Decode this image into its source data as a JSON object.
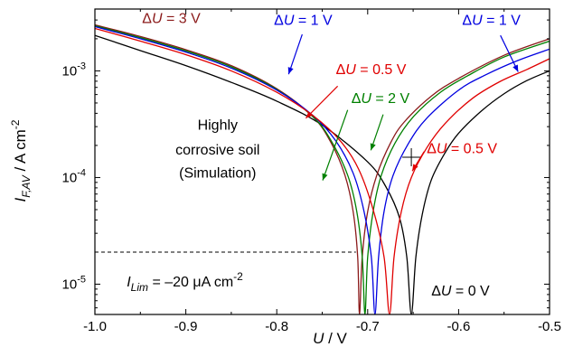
{
  "chart_data": {
    "type": "line",
    "title": "",
    "xlabel": {
      "pre": "",
      "main": "U",
      "sub": "",
      "post": " / V"
    },
    "ylabel": {
      "pre": "",
      "main": "I",
      "sub": "F,AV",
      "post": " / A cm",
      "sup": "-2"
    },
    "xlim": [
      -1.0,
      -0.5
    ],
    "ylim": [
      5.2e-06,
      0.0038
    ],
    "yscale": "log",
    "grid": false,
    "legend": "none",
    "x_ticks": [
      {
        "v": -1.0,
        "label": "-1.0"
      },
      {
        "v": -0.9,
        "label": "-0.9"
      },
      {
        "v": -0.8,
        "label": "-0.8"
      },
      {
        "v": -0.7,
        "label": "-0.7"
      },
      {
        "v": -0.6,
        "label": "-0.6"
      },
      {
        "v": -0.5,
        "label": "-0.5"
      }
    ],
    "y_ticks": [
      {
        "v": 1e-05,
        "mant": "10",
        "exp": "-5"
      },
      {
        "v": 0.0001,
        "mant": "10",
        "exp": "-4"
      },
      {
        "v": 0.001,
        "mant": "10",
        "exp": "-3"
      }
    ],
    "series": [
      {
        "color": "#000000",
        "x": [
          -1.0,
          -0.95,
          -0.9,
          -0.85,
          -0.8,
          -0.75,
          -0.7,
          -0.68,
          -0.665,
          -0.657,
          -0.652,
          -0.647,
          -0.64,
          -0.63,
          -0.615,
          -0.6,
          -0.575,
          -0.55,
          -0.525,
          -0.5
        ],
        "y": [
          0.00215,
          0.00155,
          0.00112,
          0.00078,
          0.00052,
          0.00031,
          0.00014,
          8.2e-05,
          4.2e-05,
          1.8e-05,
          5.2e-06,
          1.8e-05,
          4.5e-05,
          9.5e-05,
          0.00017,
          0.00026,
          0.00042,
          0.00061,
          0.00081,
          0.001
        ]
      },
      {
        "color": "#8b1a1a",
        "x": [
          -1.0,
          -0.95,
          -0.9,
          -0.85,
          -0.8,
          -0.76,
          -0.74,
          -0.725,
          -0.716,
          -0.711,
          -0.709,
          -0.706,
          -0.7,
          -0.69,
          -0.675,
          -0.66,
          -0.63,
          -0.6,
          -0.55,
          -0.5
        ],
        "y": [
          0.0027,
          0.0021,
          0.00158,
          0.00112,
          0.00068,
          0.00037,
          0.00021,
          0.000105,
          4.8e-05,
          1.8e-05,
          5.2e-06,
          1.8e-05,
          4.8e-05,
          0.000105,
          0.00021,
          0.00033,
          0.00058,
          0.00085,
          0.0014,
          0.002
        ]
      },
      {
        "color": "#008000",
        "x": [
          -1.0,
          -0.95,
          -0.9,
          -0.85,
          -0.8,
          -0.76,
          -0.74,
          -0.722,
          -0.712,
          -0.706,
          -0.703,
          -0.7,
          -0.694,
          -0.685,
          -0.67,
          -0.65,
          -0.62,
          -0.59,
          -0.55,
          -0.5
        ],
        "y": [
          0.00265,
          0.00205,
          0.00154,
          0.00109,
          0.00067,
          0.00037,
          0.00022,
          0.000105,
          4.8e-05,
          1.8e-05,
          5.2e-06,
          1.8e-05,
          4.8e-05,
          0.000105,
          0.00021,
          0.00037,
          0.00063,
          0.0009,
          0.00135,
          0.0019
        ]
      },
      {
        "color": "#0000e0",
        "x": [
          -1.0,
          -0.95,
          -0.9,
          -0.85,
          -0.8,
          -0.76,
          -0.735,
          -0.716,
          -0.704,
          -0.696,
          -0.692,
          -0.688,
          -0.682,
          -0.672,
          -0.655,
          -0.635,
          -0.6,
          -0.57,
          -0.535,
          -0.5
        ],
        "y": [
          0.0026,
          0.002,
          0.0015,
          0.00106,
          0.00066,
          0.00038,
          0.00022,
          0.00011,
          4.8e-05,
          1.8e-05,
          5.2e-06,
          1.8e-05,
          4.8e-05,
          0.000105,
          0.00021,
          0.00036,
          0.00066,
          0.00092,
          0.00125,
          0.0016
        ]
      },
      {
        "color": "#e00000",
        "x": [
          -1.0,
          -0.95,
          -0.9,
          -0.85,
          -0.8,
          -0.76,
          -0.73,
          -0.71,
          -0.694,
          -0.682,
          -0.676,
          -0.671,
          -0.663,
          -0.652,
          -0.635,
          -0.615,
          -0.585,
          -0.555,
          -0.525,
          -0.5
        ],
        "y": [
          0.0025,
          0.0019,
          0.00142,
          0.001,
          0.00063,
          0.00038,
          0.00022,
          0.00012,
          5e-05,
          1.8e-05,
          5.2e-06,
          1.8e-05,
          4.8e-05,
          0.0001,
          0.00019,
          0.00032,
          0.00055,
          0.00079,
          0.00103,
          0.0013
        ]
      }
    ],
    "limit_line": {
      "x": [
        -1.0,
        -0.713
      ],
      "y": 2e-05,
      "color": "#000000",
      "style": "dashed"
    },
    "marker": {
      "x": -0.652,
      "y": 0.000155,
      "shape": "plus",
      "color": "#000000"
    },
    "annotations": [
      {
        "id": "dU3",
        "color": "#8b1a1a",
        "pre": "Δ",
        "var": "U",
        "post": " = 3 V",
        "at": [
          -0.948,
          0.0028
        ]
      },
      {
        "id": "dU1a",
        "color": "#0000e0",
        "pre": "Δ",
        "var": "U",
        "post": " = 1 V",
        "at": [
          -0.803,
          0.0027
        ]
      },
      {
        "id": "dU05a",
        "color": "#e00000",
        "pre": "Δ",
        "var": "U",
        "post": " = 0.5 V",
        "at": [
          -0.735,
          0.00093
        ]
      },
      {
        "id": "dU2",
        "color": "#008000",
        "pre": "Δ",
        "var": "U",
        "post": " = 2 V",
        "at": [
          -0.718,
          0.0005
        ]
      },
      {
        "id": "dU1b",
        "color": "#0000e0",
        "pre": "Δ",
        "var": "U",
        "post": " = 1 V",
        "at": [
          -0.596,
          0.0027
        ]
      },
      {
        "id": "dU05b",
        "color": "#e00000",
        "pre": "Δ",
        "var": "U",
        "post": " = 0.5 V",
        "at": [
          -0.635,
          0.00017
        ]
      },
      {
        "id": "dU0",
        "color": "#000000",
        "pre": "Δ",
        "var": "U",
        "post": " = 0 V",
        "at": [
          -0.63,
          7.8e-06
        ]
      },
      {
        "id": "soil1",
        "color": "#000000",
        "text": "Highly",
        "at": [
          -0.865,
          0.00028
        ]
      },
      {
        "id": "soil2",
        "color": "#000000",
        "text": "corrosive soil",
        "at": [
          -0.865,
          0.000165
        ]
      },
      {
        "id": "soil3",
        "color": "#000000",
        "text": "(Simulation)",
        "at": [
          -0.865,
          0.0001
        ]
      },
      {
        "id": "ilim",
        "color": "#000000",
        "limit": {
          "main": "I",
          "sub": "Lim",
          "post": " = –20 μA cm",
          "sup": "-2"
        },
        "at": [
          -0.965,
          9.5e-06
        ]
      }
    ],
    "arrows": [
      {
        "color": "#0000e0",
        "from": [
          -0.772,
          0.0022
        ],
        "to": [
          -0.787,
          0.00093
        ]
      },
      {
        "color": "#e00000",
        "from": [
          -0.733,
          0.00072
        ],
        "to": [
          -0.768,
          0.00036
        ]
      },
      {
        "color": "#008000",
        "from": [
          -0.722,
          0.00043
        ],
        "to": [
          -0.7495,
          9.4e-05
        ]
      },
      {
        "color": "#008000",
        "from": [
          -0.683,
          0.00039
        ],
        "to": [
          -0.6965,
          0.00018
        ]
      },
      {
        "color": "#0000e0",
        "from": [
          -0.554,
          0.00215
        ],
        "to": [
          -0.5345,
          0.00098
        ]
      },
      {
        "color": "#e00000",
        "from": [
          -0.638,
          0.000175
        ],
        "to": [
          -0.651,
          0.000115
        ]
      }
    ]
  }
}
